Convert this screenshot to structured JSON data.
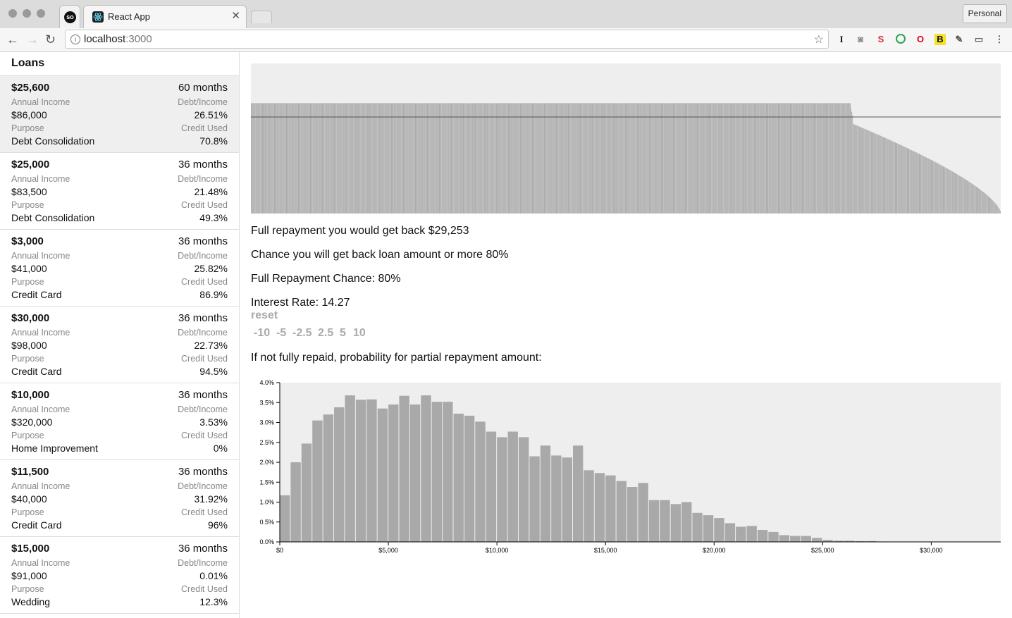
{
  "browser": {
    "tab_title": "React App",
    "url_host": "localhost",
    "url_port": ":3000",
    "profile_label": "Personal",
    "so_badge": "so",
    "extensions": [
      "I",
      "S",
      "B"
    ]
  },
  "sidebar": {
    "title": "Loans",
    "labels": {
      "income": "Annual Income",
      "dti": "Debt/Income",
      "purpose": "Purpose",
      "credit": "Credit Used"
    },
    "loans": [
      {
        "amount": "$25,600",
        "term": "60 months",
        "income": "$86,000",
        "dti": "26.51%",
        "purpose": "Debt Consolidation",
        "credit": "70.8%"
      },
      {
        "amount": "$25,000",
        "term": "36 months",
        "income": "$83,500",
        "dti": "21.48%",
        "purpose": "Debt Consolidation",
        "credit": "49.3%"
      },
      {
        "amount": "$3,000",
        "term": "36 months",
        "income": "$41,000",
        "dti": "25.82%",
        "purpose": "Credit Card",
        "credit": "86.9%"
      },
      {
        "amount": "$30,000",
        "term": "36 months",
        "income": "$98,000",
        "dti": "22.73%",
        "purpose": "Credit Card",
        "credit": "94.5%"
      },
      {
        "amount": "$10,000",
        "term": "36 months",
        "income": "$320,000",
        "dti": "3.53%",
        "purpose": "Home Improvement",
        "credit": "0%"
      },
      {
        "amount": "$11,500",
        "term": "36 months",
        "income": "$40,000",
        "dti": "31.92%",
        "purpose": "Credit Card",
        "credit": "96%"
      },
      {
        "amount": "$15,000",
        "term": "36 months",
        "income": "$91,000",
        "dti": "0.01%",
        "purpose": "Wedding",
        "credit": "12.3%"
      }
    ]
  },
  "main": {
    "full_repayment": "Full repayment you would get back $29,253",
    "chance_back": "Chance you will get back loan amount or more 80%",
    "full_chance": "Full Repayment Chance: 80%",
    "interest_rate": "Interest Rate: 14.27",
    "reset_label": "reset",
    "adjustments": [
      "-10",
      "-5",
      "-2.5",
      "2.5",
      "5",
      "10"
    ],
    "partial_heading": "If not fully repaid, probability for partial repayment amount:"
  },
  "chart_data": [
    {
      "type": "bar",
      "title": "",
      "description_series": "outcome per simulation, sorted descending",
      "full_value": 29253,
      "full_fraction": 0.8,
      "loan_amount": 25600,
      "reference_line": 25600
    },
    {
      "type": "bar",
      "title": "",
      "xlabel": "",
      "ylabel": "",
      "xlim": [
        0,
        33200
      ],
      "ylim": [
        0,
        4.0
      ],
      "bin_width": 500,
      "y_ticks": [
        "0.0%",
        "0.5%",
        "1.0%",
        "1.5%",
        "2.0%",
        "2.5%",
        "3.0%",
        "3.5%",
        "4.0%"
      ],
      "y_tick_values": [
        0,
        0.5,
        1.0,
        1.5,
        2.0,
        2.5,
        3.0,
        3.5,
        4.0
      ],
      "x_ticks": [
        "$0",
        "$5,000",
        "$10,000",
        "$15,000",
        "$20,000",
        "$25,000",
        "$30,000"
      ],
      "x_tick_values": [
        0,
        5000,
        10000,
        15000,
        20000,
        25000,
        30000
      ],
      "values": [
        1.17,
        2.0,
        2.47,
        3.05,
        3.2,
        3.38,
        3.68,
        3.57,
        3.58,
        3.35,
        3.45,
        3.67,
        3.45,
        3.68,
        3.52,
        3.52,
        3.22,
        3.17,
        3.02,
        2.77,
        2.63,
        2.77,
        2.63,
        2.15,
        2.42,
        2.17,
        2.12,
        2.42,
        1.8,
        1.73,
        1.67,
        1.53,
        1.38,
        1.48,
        1.05,
        1.05,
        0.95,
        1.0,
        0.73,
        0.67,
        0.6,
        0.47,
        0.38,
        0.4,
        0.3,
        0.25,
        0.17,
        0.15,
        0.15,
        0.1,
        0.05,
        0.03,
        0.03,
        0.02,
        0.02,
        0.01,
        0.0,
        0.0,
        0.0,
        0.0,
        0.0,
        0.0,
        0.0,
        0.0,
        0.0,
        0.0
      ]
    }
  ]
}
